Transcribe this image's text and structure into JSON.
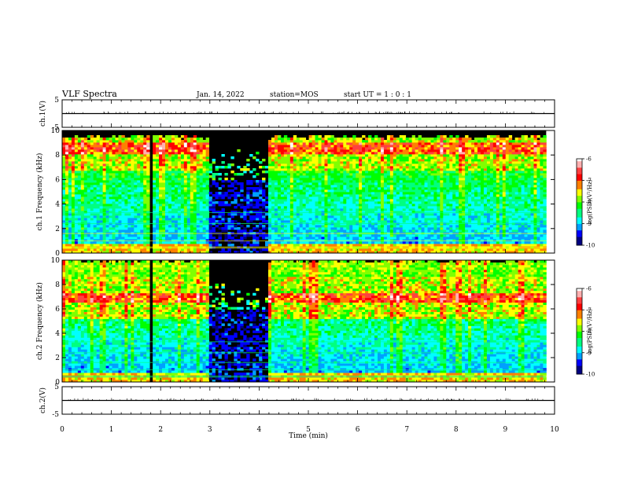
{
  "header": {
    "title": "VLF Spectra",
    "date": "Jan. 14, 2022",
    "station": "station=MOS",
    "start": "start UT = 1 : 0 : 1"
  },
  "colors": {
    "colormap": [
      "#000080",
      "#0000ff",
      "#00a0ff",
      "#00ffff",
      "#00ff80",
      "#00ff00",
      "#80ff00",
      "#ffff00",
      "#ff8000",
      "#ff0000",
      "#ff4040",
      "#ffb0b0",
      "#ffffff"
    ],
    "background_no_data": "#000000"
  },
  "chart_data": [
    {
      "type": "line",
      "name": "ch1-waveform",
      "ylabel": "ch.1(V)",
      "ylim": [
        -5,
        5
      ],
      "ytick_labels": [
        "5",
        "-5"
      ],
      "x": [
        0,
        10
      ],
      "y": [
        0,
        0
      ]
    },
    {
      "type": "heatmap",
      "name": "ch1-spectrogram",
      "ylabel": "ch.1 Frequency (kHz)",
      "ylim": [
        0,
        10
      ],
      "xlim": [
        0,
        10
      ],
      "ytick_labels": [
        "0",
        "2",
        "4",
        "6",
        "8",
        "10"
      ],
      "data_end_min": 9.83,
      "signal_top_khz": 9.3,
      "dropout_min": [
        [
          1.75,
          1.85
        ]
      ],
      "quiet_interval_min": [
        3.0,
        4.2
      ],
      "intense_band_khz": [
        8.0,
        9.0
      ],
      "colorbar": {
        "label": "log(PSD)(V²/Hz)",
        "ticks": [
          "-6",
          "-7",
          "-8",
          "-9",
          "-10"
        ],
        "range": [
          -10,
          -6
        ]
      }
    },
    {
      "type": "heatmap",
      "name": "ch2-spectrogram",
      "ylabel": "ch.2 Frequency (kHz)",
      "ylim": [
        0,
        10
      ],
      "xlim": [
        0,
        10
      ],
      "ytick_labels": [
        "0",
        "2",
        "4",
        "6",
        "8",
        "10"
      ],
      "data_end_min": 9.83,
      "signal_top_khz": 9.8,
      "dropout_min": [
        [
          1.75,
          1.85
        ]
      ],
      "quiet_interval_min": [
        3.0,
        4.2
      ],
      "intense_band_khz": [
        6.5,
        7.3
      ],
      "colorbar": {
        "label": "log(PSD)(V²/Hz)",
        "ticks": [
          "-6",
          "-7",
          "-8",
          "-9",
          "-10"
        ],
        "range": [
          -10,
          -6
        ]
      }
    },
    {
      "type": "line",
      "name": "ch2-waveform",
      "ylabel": "ch.2(V)",
      "ylim": [
        -5,
        5
      ],
      "ytick_labels": [
        "5",
        "-5"
      ],
      "x": [
        0,
        10
      ],
      "y": [
        0,
        0
      ]
    }
  ],
  "xaxis": {
    "label": "Time (min)",
    "range": [
      0,
      10
    ],
    "ticks": [
      "0",
      "1",
      "2",
      "3",
      "4",
      "5",
      "6",
      "7",
      "8",
      "9",
      "10"
    ]
  }
}
